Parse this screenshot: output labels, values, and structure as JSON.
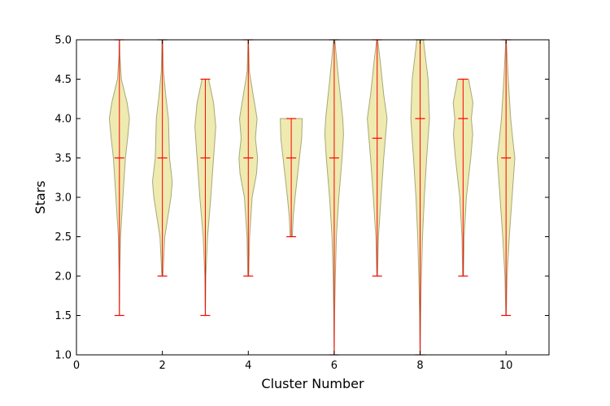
{
  "chart_data": {
    "type": "violin",
    "xlabel": "Cluster Number",
    "ylabel": "Stars",
    "xlim": [
      0,
      11
    ],
    "ylim": [
      1.0,
      5.0
    ],
    "xticks": [
      0,
      2,
      4,
      6,
      8,
      10
    ],
    "yticks": [
      1.0,
      1.5,
      2.0,
      2.5,
      3.0,
      3.5,
      4.0,
      4.5,
      5.0
    ],
    "ytick_labels": [
      "1.0",
      "1.5",
      "2.0",
      "2.5",
      "3.0",
      "3.5",
      "4.0",
      "4.5",
      "5.0"
    ],
    "grid": false,
    "colors": {
      "body_fill": "#eeeab0",
      "body_edge": "#a8a878",
      "lines": "#ff0000",
      "axes": "#000000"
    },
    "violins": [
      {
        "cluster": 1,
        "min": 1.5,
        "median": 3.5,
        "max": 5.0,
        "profile": [
          [
            1.5,
            0.01
          ],
          [
            2.0,
            0.03
          ],
          [
            2.5,
            0.1
          ],
          [
            3.0,
            0.32
          ],
          [
            3.5,
            0.55
          ],
          [
            3.75,
            0.75
          ],
          [
            4.0,
            0.92
          ],
          [
            4.2,
            0.7
          ],
          [
            4.5,
            0.18
          ],
          [
            4.8,
            0.04
          ],
          [
            5.0,
            0.02
          ]
        ]
      },
      {
        "cluster": 2,
        "min": 2.0,
        "median": 3.5,
        "max": 5.0,
        "profile": [
          [
            2.0,
            0.05
          ],
          [
            2.5,
            0.22
          ],
          [
            3.0,
            0.78
          ],
          [
            3.2,
            0.9
          ],
          [
            3.5,
            0.65
          ],
          [
            4.0,
            0.55
          ],
          [
            4.3,
            0.3
          ],
          [
            4.6,
            0.1
          ],
          [
            5.0,
            0.03
          ]
        ]
      },
      {
        "cluster": 3,
        "min": 1.5,
        "median": 3.5,
        "max": 4.5,
        "profile": [
          [
            1.5,
            0.01
          ],
          [
            2.0,
            0.05
          ],
          [
            2.5,
            0.2
          ],
          [
            3.0,
            0.5
          ],
          [
            3.5,
            0.75
          ],
          [
            3.9,
            0.95
          ],
          [
            4.2,
            0.75
          ],
          [
            4.5,
            0.3
          ]
        ]
      },
      {
        "cluster": 4,
        "min": 2.0,
        "median": 3.5,
        "max": 5.0,
        "profile": [
          [
            2.0,
            0.04
          ],
          [
            2.5,
            0.12
          ],
          [
            3.0,
            0.35
          ],
          [
            3.3,
            0.75
          ],
          [
            3.5,
            0.85
          ],
          [
            3.75,
            0.65
          ],
          [
            4.0,
            0.8
          ],
          [
            4.3,
            0.45
          ],
          [
            4.6,
            0.1
          ],
          [
            5.0,
            0.02
          ]
        ]
      },
      {
        "cluster": 5,
        "min": 2.5,
        "median": 3.5,
        "max": 4.0,
        "profile": [
          [
            2.5,
            0.1
          ],
          [
            2.75,
            0.18
          ],
          [
            3.0,
            0.35
          ],
          [
            3.25,
            0.55
          ],
          [
            3.5,
            0.75
          ],
          [
            3.75,
            0.95
          ],
          [
            4.0,
            1.0
          ]
        ]
      },
      {
        "cluster": 6,
        "min": 1.0,
        "median": 3.5,
        "max": 5.0,
        "profile": [
          [
            1.0,
            0.01
          ],
          [
            1.5,
            0.04
          ],
          [
            2.0,
            0.1
          ],
          [
            2.5,
            0.2
          ],
          [
            3.0,
            0.42
          ],
          [
            3.5,
            0.72
          ],
          [
            3.8,
            0.85
          ],
          [
            4.0,
            0.78
          ],
          [
            4.5,
            0.4
          ],
          [
            5.0,
            0.05
          ]
        ]
      },
      {
        "cluster": 7,
        "min": 2.0,
        "median": 3.75,
        "max": 5.0,
        "profile": [
          [
            2.0,
            0.03
          ],
          [
            2.5,
            0.12
          ],
          [
            3.0,
            0.35
          ],
          [
            3.5,
            0.6
          ],
          [
            4.0,
            0.9
          ],
          [
            4.3,
            0.6
          ],
          [
            4.7,
            0.3
          ],
          [
            5.0,
            0.05
          ]
        ]
      },
      {
        "cluster": 8,
        "min": 1.0,
        "median": 4.0,
        "max": 5.0,
        "profile": [
          [
            1.0,
            0.01
          ],
          [
            1.5,
            0.05
          ],
          [
            2.0,
            0.12
          ],
          [
            2.5,
            0.22
          ],
          [
            3.0,
            0.38
          ],
          [
            3.5,
            0.6
          ],
          [
            4.0,
            0.85
          ],
          [
            4.5,
            0.72
          ],
          [
            5.0,
            0.3
          ]
        ]
      },
      {
        "cluster": 9,
        "min": 2.0,
        "median": 4.0,
        "max": 4.5,
        "profile": [
          [
            2.0,
            0.04
          ],
          [
            2.5,
            0.1
          ],
          [
            3.0,
            0.3
          ],
          [
            3.5,
            0.7
          ],
          [
            3.8,
            0.88
          ],
          [
            4.0,
            0.75
          ],
          [
            4.2,
            0.9
          ],
          [
            4.5,
            0.5
          ]
        ]
      },
      {
        "cluster": 10,
        "min": 1.5,
        "median": 3.5,
        "max": 5.0,
        "profile": [
          [
            1.5,
            0.02
          ],
          [
            2.0,
            0.1
          ],
          [
            2.5,
            0.3
          ],
          [
            3.0,
            0.55
          ],
          [
            3.5,
            0.8
          ],
          [
            3.75,
            0.6
          ],
          [
            4.0,
            0.42
          ],
          [
            4.5,
            0.2
          ],
          [
            5.0,
            0.02
          ]
        ]
      }
    ]
  }
}
